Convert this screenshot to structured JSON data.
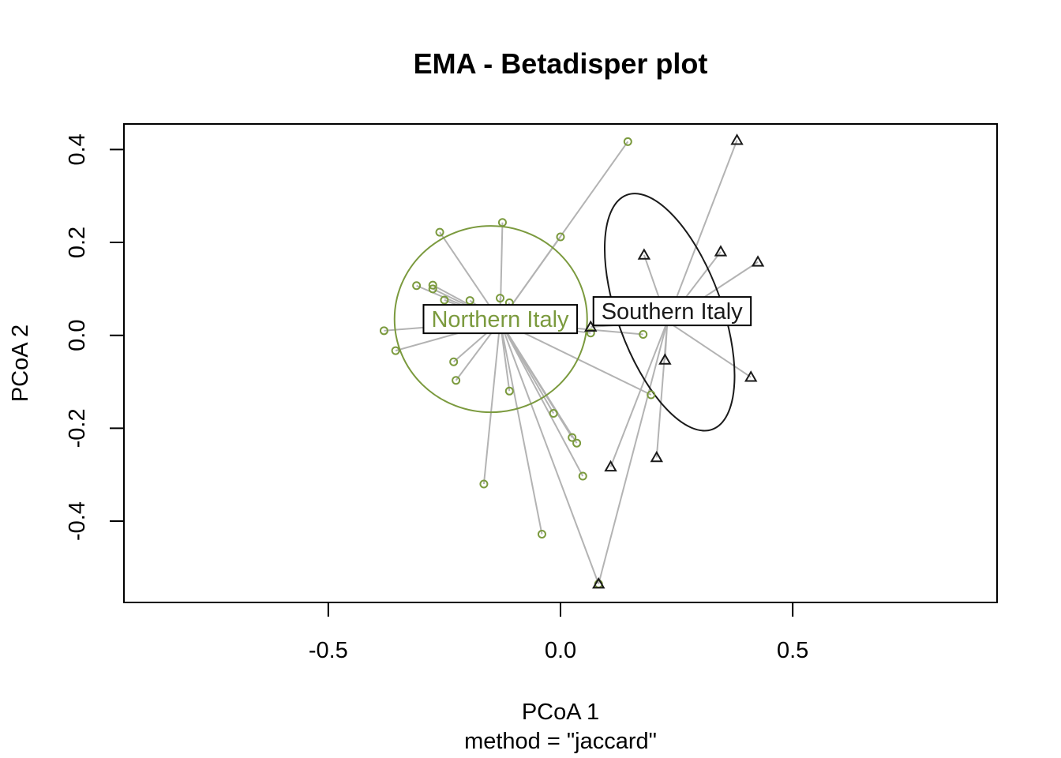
{
  "chart_data": {
    "type": "scatter",
    "title": "EMA - Betadisper plot",
    "xlabel": "PCoA 1",
    "sublabel": "method = \"jaccard\"",
    "ylabel": "PCoA 2",
    "xlim": [
      -0.94,
      0.94
    ],
    "ylim": [
      -0.575,
      0.455
    ],
    "x_ticks": [
      {
        "value": -0.5,
        "label": "-0.5"
      },
      {
        "value": 0.0,
        "label": "0.0"
      },
      {
        "value": 0.5,
        "label": "0.5"
      }
    ],
    "y_ticks": [
      {
        "value": -0.4,
        "label": "-0.4"
      },
      {
        "value": -0.2,
        "label": "-0.2"
      },
      {
        "value": 0.0,
        "label": "0.0"
      },
      {
        "value": 0.2,
        "label": "0.2"
      },
      {
        "value": 0.4,
        "label": "0.4"
      }
    ],
    "grid": false,
    "spoke_color": "#b3b3b3",
    "groups": [
      {
        "name": "Northern Italy",
        "color": "#7b9a3e",
        "marker": "circle",
        "centroid": [
          -0.13,
          0.03
        ],
        "ellipse": {
          "cx": -0.15,
          "cy": 0.035,
          "rx_data": 0.205,
          "ry_data": 0.205,
          "angle_deg": 0,
          "note_shape": "circle-ish"
        },
        "points": [
          [
            0.145,
            0.417
          ],
          [
            -0.125,
            0.243
          ],
          [
            -0.26,
            0.222
          ],
          [
            0.0,
            0.212
          ],
          [
            -0.31,
            0.107
          ],
          [
            -0.275,
            0.108
          ],
          [
            -0.275,
            0.1
          ],
          [
            -0.25,
            0.076
          ],
          [
            -0.195,
            0.075
          ],
          [
            -0.13,
            0.08
          ],
          [
            -0.11,
            0.07
          ],
          [
            -0.38,
            0.01
          ],
          [
            -0.355,
            -0.033
          ],
          [
            -0.23,
            -0.057
          ],
          [
            -0.225,
            -0.097
          ],
          [
            -0.11,
            -0.12
          ],
          [
            -0.015,
            -0.168
          ],
          [
            0.025,
            -0.22
          ],
          [
            0.035,
            -0.232
          ],
          [
            0.048,
            -0.303
          ],
          [
            -0.165,
            -0.32
          ],
          [
            -0.04,
            -0.428
          ],
          [
            0.065,
            0.005
          ],
          [
            0.178,
            0.002
          ],
          [
            0.195,
            -0.128
          ],
          [
            0.082,
            -0.535
          ]
        ]
      },
      {
        "name": "Southern Italy",
        "color": "#1a1a1a",
        "marker": "triangle",
        "centroid": [
          0.23,
          0.03
        ],
        "ellipse": {
          "cx": 0.235,
          "cy": 0.05,
          "angle_deg": -20
        },
        "points": [
          [
            0.38,
            0.42
          ],
          [
            0.18,
            0.173
          ],
          [
            0.345,
            0.18
          ],
          [
            0.425,
            0.158
          ],
          [
            0.065,
            0.018
          ],
          [
            0.225,
            -0.053
          ],
          [
            0.41,
            -0.09
          ],
          [
            0.108,
            -0.283
          ],
          [
            0.207,
            -0.263
          ],
          [
            0.082,
            -0.535
          ]
        ]
      }
    ]
  }
}
